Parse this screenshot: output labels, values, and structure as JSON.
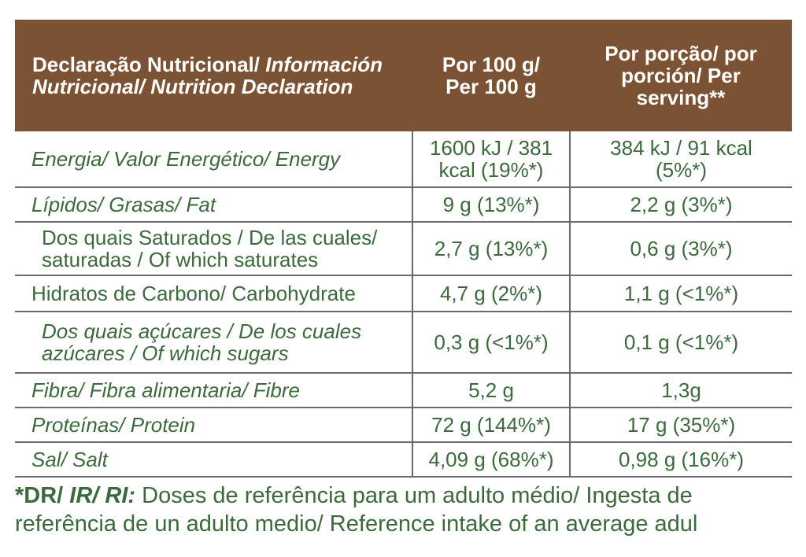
{
  "header": {
    "col1_part1": "Declaração Nutricional/ ",
    "col1_part2": "Información",
    "col1_part3": "Nutricional/ Nutrition Declaration",
    "col2_line1": "Por 100 g/",
    "col2_line2": "Per 100 g",
    "col3_line1": "Por porção/ por",
    "col3_line2": "porción/ Per",
    "col3_line3": "serving**"
  },
  "rows": [
    {
      "label": "Energia/ Valor Energético/ Energy",
      "per100_l1": "1600 kJ / 381",
      "per100_l2": "kcal (19%*)",
      "serv_l1": "384 kJ / 91 kcal",
      "serv_l2": "(5%*)"
    },
    {
      "label": "Lípidos/ Grasas/ Fat",
      "per100": "9 g (13%*)",
      "serv": "2,2 g (3%*)"
    },
    {
      "label_l1": "Dos quais Saturados / De las cuales/",
      "label_l2": "saturadas / Of which saturates",
      "per100": "2,7 g (13%*)",
      "serv": "0,6 g (3%*)"
    },
    {
      "label": "Hidratos de Carbono/ Carbohydrate",
      "per100": "4,7 g (2%*)",
      "serv": "1,1 g (<1%*)"
    },
    {
      "label_l1": "Dos quais açúcares / De los cuales",
      "label_l2": "azúcares / Of which sugars",
      "per100": "0,3 g (<1%*)",
      "serv": "0,1 g (<1%*)"
    },
    {
      "label": "Fibra/ Fibra alimentaria/ Fibre",
      "per100": "5,2 g",
      "serv": "1,3g"
    },
    {
      "label": "Proteínas/ Protein",
      "per100": "72 g (144%*)",
      "serv": "17 g (35%*)"
    },
    {
      "label": "Sal/ Salt",
      "per100": "4,09 g (68%*)",
      "serv": "0,98 g (16%*)"
    }
  ],
  "footer": {
    "dr": "*DR/ ",
    "irri": "IR/ RI:",
    "text_l1": " Doses de referência para um adulto médio/ Ingesta de",
    "text_l2": "referência de un adulto medio/ Reference intake of an average adul"
  },
  "colors": {
    "header_bg": "#7b5233",
    "text_green": "#3c6a3c",
    "rule_gray": "#6a6a6a"
  }
}
